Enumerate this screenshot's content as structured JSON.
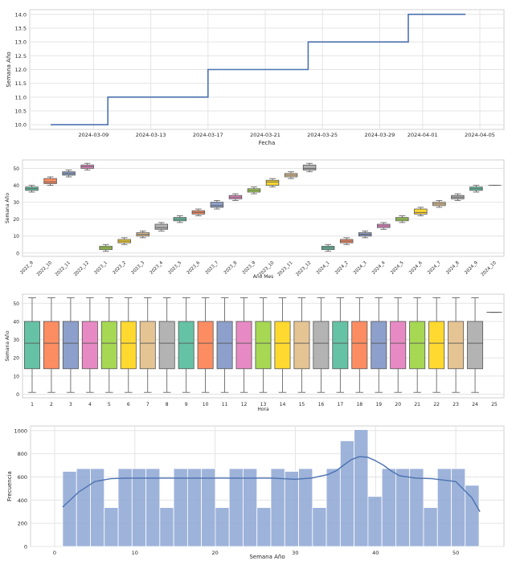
{
  "chart_data": [
    {
      "type": "line",
      "xlabel": "Fecha",
      "ylabel": "Semana Año",
      "ylim": [
        9.83,
        14.17
      ],
      "yticks": [
        "10.0",
        "10.5",
        "11.0",
        "11.5",
        "12.0",
        "12.5",
        "13.0",
        "13.5",
        "14.0"
      ],
      "xticks": [
        "2024-03-09",
        "2024-03-13",
        "2024-03-17",
        "2024-03-21",
        "2024-03-25",
        "2024-03-29",
        "2024-04-01",
        "2024-04-05"
      ],
      "x": [
        "2024-03-06",
        "2024-03-10",
        "2024-03-10",
        "2024-03-17",
        "2024-03-17",
        "2024-03-24",
        "2024-03-24",
        "2024-03-31",
        "2024-03-31",
        "2024-04-04"
      ],
      "y": [
        10,
        10,
        11,
        11,
        12,
        12,
        13,
        13,
        14,
        14
      ],
      "grid": true,
      "line_color": "#4c72b0"
    },
    {
      "type": "box",
      "xlabel": "Año Mes",
      "ylabel": "Semana Año",
      "ylim": [
        -2,
        55
      ],
      "yticks": [
        "0",
        "10",
        "20",
        "30",
        "40",
        "50"
      ],
      "categories": [
        "2022_9",
        "2022_10",
        "2022_11",
        "2022_12",
        "2023_1",
        "2023_2",
        "2023_3",
        "2023_4",
        "2023_5",
        "2023_6",
        "2023_7",
        "2023_8",
        "2023_9",
        "2023_10",
        "2023_11",
        "2023_12",
        "2024_1",
        "2024_2",
        "2024_3",
        "2024_4",
        "2024_5",
        "2024_6",
        "2024_7",
        "2024_8",
        "2024_9",
        "2024_10"
      ],
      "boxes": [
        {
          "min": 36,
          "q1": 37,
          "med": 38,
          "q3": 39,
          "max": 40
        },
        {
          "min": 40,
          "q1": 41,
          "med": 42,
          "q3": 44,
          "max": 45
        },
        {
          "min": 45,
          "q1": 46,
          "med": 47,
          "q3": 48,
          "max": 49
        },
        {
          "min": 49,
          "q1": 50,
          "med": 51,
          "q3": 52,
          "max": 53
        },
        {
          "min": 1,
          "q1": 2,
          "med": 3,
          "q3": 4,
          "max": 5
        },
        {
          "min": 5,
          "q1": 6,
          "med": 7,
          "q3": 8,
          "max": 9
        },
        {
          "min": 9,
          "q1": 10,
          "med": 11,
          "q3": 12,
          "max": 13
        },
        {
          "min": 13,
          "q1": 14,
          "med": 15,
          "q3": 17,
          "max": 18
        },
        {
          "min": 18,
          "q1": 19,
          "med": 20,
          "q3": 21,
          "max": 22
        },
        {
          "min": 22,
          "q1": 23,
          "med": 24,
          "q3": 25,
          "max": 26
        },
        {
          "min": 26,
          "q1": 27,
          "med": 28,
          "q3": 30,
          "max": 31
        },
        {
          "min": 31,
          "q1": 32,
          "med": 33,
          "q3": 34,
          "max": 35
        },
        {
          "min": 35,
          "q1": 36,
          "med": 37,
          "q3": 38,
          "max": 39
        },
        {
          "min": 39,
          "q1": 40,
          "med": 42,
          "q3": 43,
          "max": 44
        },
        {
          "min": 44,
          "q1": 45,
          "med": 46,
          "q3": 47,
          "max": 48
        },
        {
          "min": 48,
          "q1": 49,
          "med": 50,
          "q3": 52,
          "max": 53
        },
        {
          "min": 1,
          "q1": 2,
          "med": 3,
          "q3": 4,
          "max": 5
        },
        {
          "min": 5,
          "q1": 6,
          "med": 7,
          "q3": 8,
          "max": 9
        },
        {
          "min": 9,
          "q1": 10,
          "med": 11,
          "q3": 12,
          "max": 13
        },
        {
          "min": 14,
          "q1": 15,
          "med": 16,
          "q3": 17,
          "max": 18
        },
        {
          "min": 18,
          "q1": 19,
          "med": 20,
          "q3": 21,
          "max": 22
        },
        {
          "min": 22,
          "q1": 23,
          "med": 24,
          "q3": 26,
          "max": 27
        },
        {
          "min": 27,
          "q1": 28,
          "med": 29,
          "q3": 30,
          "max": 31
        },
        {
          "min": 31,
          "q1": 32,
          "med": 33,
          "q3": 34,
          "max": 35
        },
        {
          "min": 36,
          "q1": 37,
          "med": 38,
          "q3": 39,
          "max": 40
        },
        {
          "min": 40,
          "q1": 40,
          "med": 40,
          "q3": 40,
          "max": 40
        }
      ],
      "palette": [
        "#66c2a5",
        "#fc8d62",
        "#8da0cb",
        "#e78ac3",
        "#a6d854",
        "#ffd92f",
        "#e5c494",
        "#b3b3b3"
      ],
      "grid": true
    },
    {
      "type": "box",
      "xlabel": "Hora",
      "ylabel": "Semana Año",
      "ylim": [
        -2,
        55
      ],
      "yticks": [
        "0",
        "10",
        "20",
        "30",
        "40",
        "50"
      ],
      "categories": [
        "1",
        "2",
        "3",
        "4",
        "5",
        "6",
        "7",
        "8",
        "9",
        "10",
        "11",
        "12",
        "13",
        "14",
        "15",
        "16",
        "17",
        "18",
        "19",
        "20",
        "21",
        "22",
        "23",
        "24",
        "25"
      ],
      "box": {
        "min": 1,
        "q1": 14,
        "med": 28,
        "q3": 40,
        "max": 53
      },
      "last_box": {
        "min": 45,
        "q1": 45,
        "med": 45,
        "q3": 45,
        "max": 45
      },
      "palette": [
        "#66c2a5",
        "#fc8d62",
        "#8da0cb",
        "#e78ac3",
        "#a6d854",
        "#ffd92f",
        "#e5c494",
        "#b3b3b3"
      ],
      "grid": true
    },
    {
      "type": "histogram",
      "xlabel": "Semana Año",
      "ylabel": "Frecuencia",
      "xlim": [
        -3,
        56
      ],
      "ylim": [
        0,
        1040
      ],
      "xticks": [
        "0",
        "10",
        "20",
        "30",
        "40",
        "50"
      ],
      "yticks": [
        "0",
        "200",
        "400",
        "600",
        "800",
        "1000"
      ],
      "bin_start": 1,
      "bin_width": 1.73,
      "counts": [
        648,
        672,
        672,
        336,
        672,
        672,
        672,
        336,
        672,
        672,
        672,
        336,
        672,
        672,
        336,
        672,
        648,
        672,
        336,
        672,
        912,
        1008,
        432,
        672,
        672,
        672,
        336,
        672,
        672,
        528
      ],
      "kde": {
        "x": [
          1,
          3,
          5,
          7,
          9,
          12,
          15,
          18,
          21,
          24,
          27,
          30,
          32,
          34,
          35,
          36,
          37,
          38,
          39,
          40,
          41,
          42,
          43,
          45,
          47,
          50,
          52,
          53
        ],
        "y": [
          340,
          470,
          560,
          585,
          590,
          590,
          590,
          590,
          590,
          590,
          590,
          580,
          590,
          620,
          650,
          700,
          750,
          775,
          770,
          740,
          700,
          650,
          610,
          590,
          585,
          560,
          420,
          300
        ]
      },
      "bar_color": "#8da6d3",
      "line_color": "#4c72b0",
      "grid": true
    }
  ]
}
